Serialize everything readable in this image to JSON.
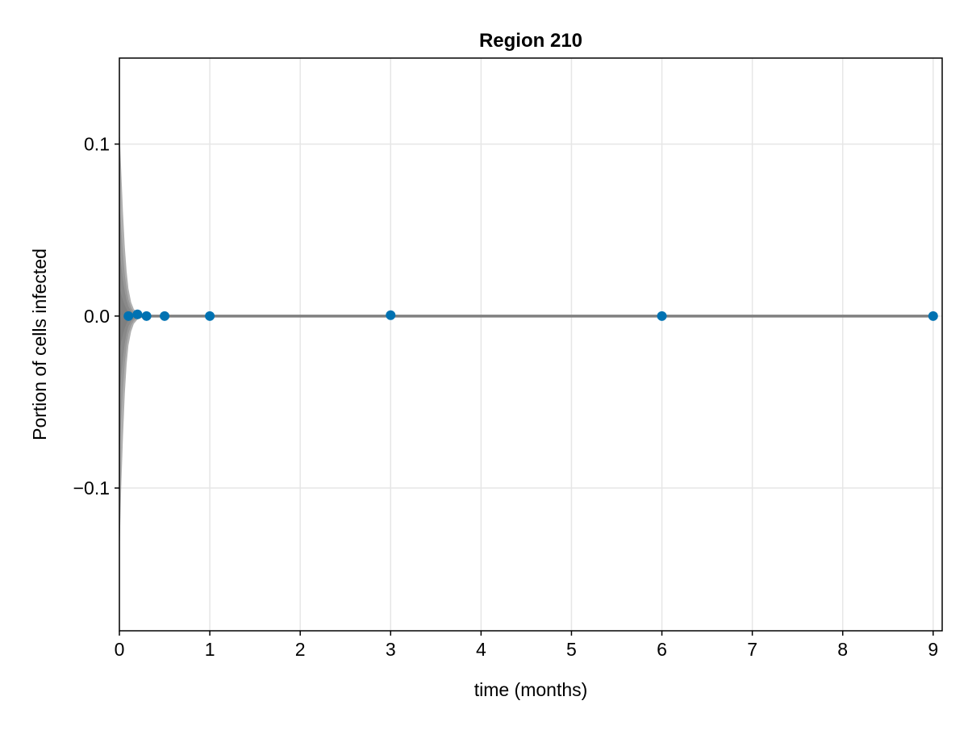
{
  "chart_data": {
    "type": "scatter",
    "title": "Region 210",
    "xlabel": "time (months)",
    "ylabel": "Portion of cells infected",
    "xlim": [
      0,
      9.1
    ],
    "ylim": [
      -0.183,
      0.15
    ],
    "grid": true,
    "x_ticks": [
      0,
      1,
      2,
      3,
      4,
      5,
      6,
      7,
      8,
      9
    ],
    "x_tick_labels": [
      "0",
      "1",
      "2",
      "3",
      "4",
      "5",
      "6",
      "7",
      "8",
      "9"
    ],
    "y_ticks": [
      0.1,
      0.0,
      -0.1
    ],
    "y_tick_labels": [
      "0.1",
      "0.0",
      "−0.1"
    ],
    "band": {
      "description_color": "#7f7f7f",
      "color": "#6e6e6e",
      "x": [
        0,
        0.02,
        0.04,
        0.06,
        0.08,
        0.1,
        0.13,
        0.16,
        0.2,
        0.25,
        0.3,
        0.4,
        0.5,
        1,
        3,
        6,
        9
      ],
      "upper": [
        0.11,
        0.085,
        0.06,
        0.04,
        0.026,
        0.016,
        0.008,
        0.004,
        0.002,
        0.001,
        0.0006,
        0.0003,
        0.0002,
        0.0001,
        0.0001,
        0.0001,
        0.0001
      ],
      "lower": [
        -0.14,
        -0.1,
        -0.07,
        -0.045,
        -0.028,
        -0.017,
        -0.009,
        -0.0045,
        -0.002,
        -0.001,
        -0.0006,
        -0.0003,
        -0.0002,
        -0.0001,
        -0.0001,
        -0.0001,
        -0.0001
      ]
    },
    "series": [
      {
        "color": "#0072b2",
        "x": [
          0.1,
          0.2,
          0.3,
          0.5,
          1,
          3,
          6,
          9
        ],
        "y": [
          0.0,
          0.001,
          0.0,
          0.0,
          0.0,
          0.0005,
          0.0,
          0.0
        ]
      }
    ]
  }
}
